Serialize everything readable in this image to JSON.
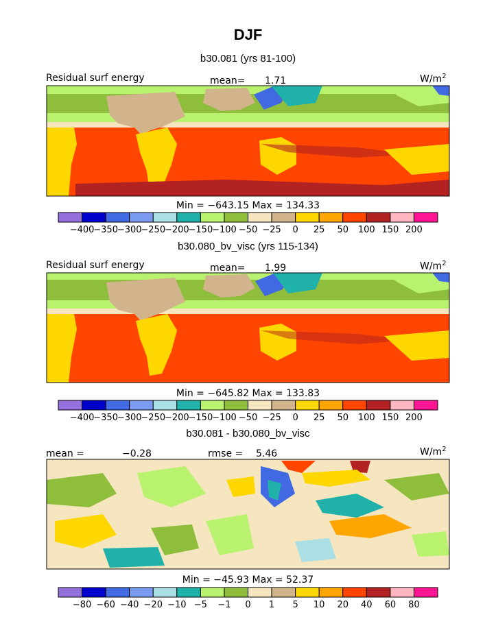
{
  "title": "DJF",
  "units_label": "W/m",
  "units_sup": "2",
  "colors": {
    "abs": [
      "#9370db",
      "#0000cd",
      "#4169e1",
      "#7b9bf0",
      "#aadfe6",
      "#20b2aa",
      "#b9f26e",
      "#8fbd3c",
      "#f5e6c0",
      "#d2b48c",
      "#ffd700",
      "#ffa500",
      "#ff4500",
      "#b22222",
      "#ffb6c1",
      "#ff1493"
    ],
    "diff": [
      "#9370db",
      "#0000cd",
      "#4169e1",
      "#7b9bf0",
      "#aadfe6",
      "#20b2aa",
      "#b9f26e",
      "#8fbd3c",
      "#f5e6c0",
      "#d2b48c",
      "#ffd700",
      "#ffa500",
      "#ff4500",
      "#b22222",
      "#ffb6c1",
      "#ff1493"
    ]
  },
  "chart_data": [
    {
      "type": "heatmap",
      "subtitle": "b30.081 (yrs 81-100)",
      "left_label": "Residual surf energy",
      "mean_label": "mean=",
      "mean_value": "1.71",
      "min_max_text": "Min = −643.15 Max = 134.33",
      "min": -643.15,
      "max": 134.33,
      "colorbar_ticks": [
        "−400",
        "−350",
        "−300",
        "−250",
        "−200",
        "−150",
        "−100",
        "−50",
        "−25",
        "0",
        "25",
        "50",
        "100",
        "150",
        "200"
      ]
    },
    {
      "type": "heatmap",
      "subtitle": "b30.080_bv_visc (yrs 115-134)",
      "left_label": "Residual surf energy",
      "mean_label": "mean=",
      "mean_value": "1.99",
      "min_max_text": "Min = −645.82 Max = 133.83",
      "min": -645.82,
      "max": 133.83,
      "colorbar_ticks": [
        "−400",
        "−350",
        "−300",
        "−250",
        "−200",
        "−150",
        "−100",
        "−50",
        "−25",
        "0",
        "25",
        "50",
        "100",
        "150",
        "200"
      ]
    },
    {
      "type": "heatmap",
      "subtitle": "b30.081 - b30.080_bv_visc",
      "mean_label": "mean =",
      "mean_value": "−0.28",
      "rmse_label": "rmse =",
      "rmse_value": "5.46",
      "min_max_text": "Min = −45.93 Max = 52.37",
      "min": -45.93,
      "max": 52.37,
      "colorbar_ticks": [
        "−80",
        "−60",
        "−40",
        "−20",
        "−10",
        "−5",
        "−1",
        "0",
        "1",
        "5",
        "10",
        "20",
        "40",
        "60",
        "80"
      ]
    }
  ]
}
